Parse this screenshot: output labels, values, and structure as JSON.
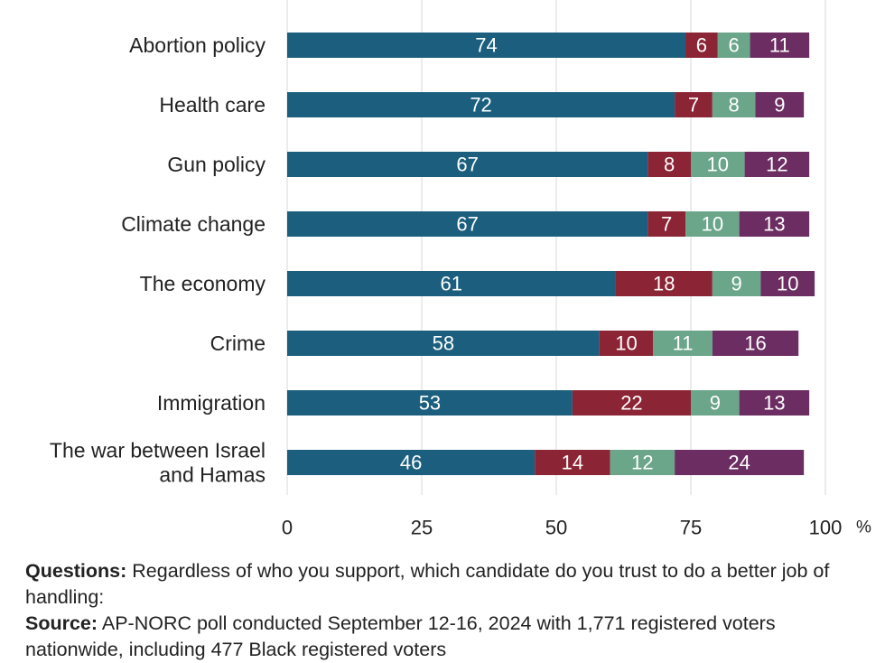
{
  "chart_data": {
    "type": "bar",
    "orientation": "horizontal",
    "stacked": true,
    "categories": [
      [
        "Abortion policy"
      ],
      [
        "Health care"
      ],
      [
        "Gun policy"
      ],
      [
        "Climate change"
      ],
      [
        "The economy"
      ],
      [
        "Crime"
      ],
      [
        "Immigration"
      ],
      [
        "The war between Israel",
        "and Hamas"
      ]
    ],
    "series": [
      {
        "color": "#1b5e7d",
        "values": [
          74,
          72,
          67,
          67,
          61,
          58,
          53,
          46
        ]
      },
      {
        "color": "#8b2535",
        "values": [
          6,
          7,
          8,
          7,
          18,
          10,
          22,
          14
        ]
      },
      {
        "color": "#6ba58a",
        "values": [
          6,
          8,
          10,
          10,
          9,
          11,
          9,
          12
        ]
      },
      {
        "color": "#6b2d62",
        "values": [
          11,
          9,
          12,
          13,
          10,
          16,
          13,
          24
        ]
      }
    ],
    "xlim": [
      0,
      100
    ],
    "xticks": [
      "0",
      "25",
      "50",
      "75",
      "100"
    ],
    "xunit": "%",
    "grid": true
  },
  "notes": {
    "questions_label": "Questions:",
    "questions_text": " Regardless of who you support, which candidate do you trust to do a better job of handling:",
    "source_label": "Source:",
    "source_text": " AP-NORC poll conducted September 12-16, 2024 with 1,771 registered voters nationwide, including 477 Black registered voters"
  }
}
